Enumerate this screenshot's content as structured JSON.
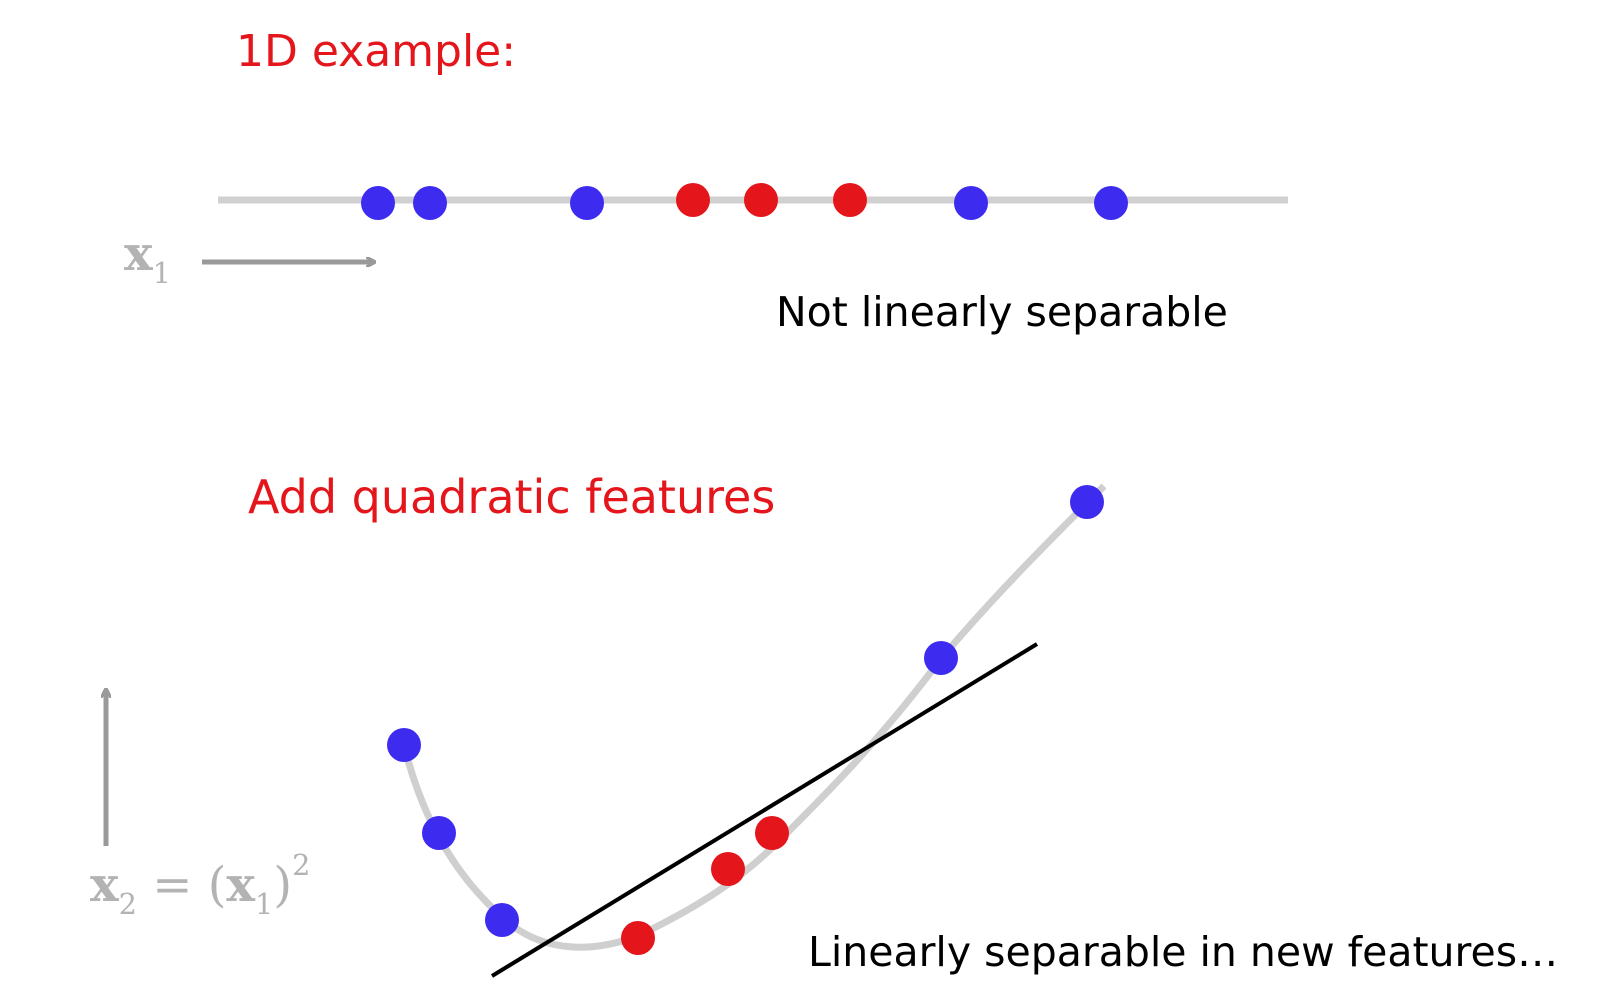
{
  "headings": {
    "top": "1D example:",
    "bottom": "Add quadratic features"
  },
  "notes": {
    "top": "Not linearly separable",
    "bottom": "Linearly separable in new features…"
  },
  "axis_labels": {
    "x1_base": "x",
    "x1_sub": "1",
    "x2_base": "x",
    "x2_sub": "2",
    "x2_eq": " = (",
    "x2_inner_base": "x",
    "x2_inner_sub": "1",
    "x2_close": ")",
    "x2_sup": "2"
  },
  "colors": {
    "positive_class": "#e4151b",
    "negative_class": "#3d2bf0",
    "axis_line": "#d0d0d0",
    "arrow": "#999999",
    "separator": "#000000",
    "heading": "#e4151b"
  },
  "icons": {
    "x1_arrow": "arrow-right-icon",
    "x2_arrow": "arrow-up-icon"
  }
}
